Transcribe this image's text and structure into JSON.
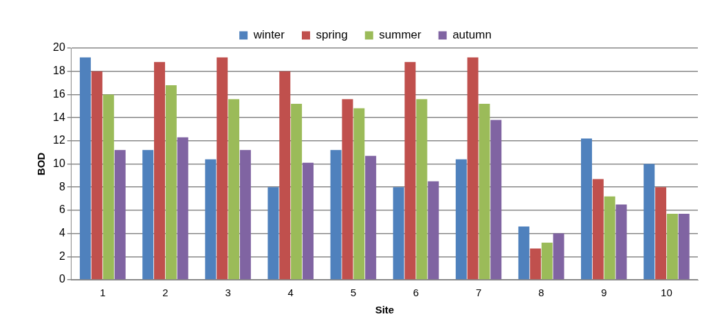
{
  "chart_data": {
    "type": "bar",
    "xlabel": "Site",
    "ylabel": "BOD",
    "categories": [
      "1",
      "2",
      "3",
      "4",
      "5",
      "6",
      "7",
      "8",
      "9",
      "10"
    ],
    "series": [
      {
        "name": "winter",
        "color": "#4f81bd",
        "values": [
          19.2,
          11.2,
          10.4,
          8.0,
          11.2,
          8.0,
          10.4,
          4.6,
          12.2,
          10.0
        ]
      },
      {
        "name": "spring",
        "color": "#c0504d",
        "values": [
          18.0,
          18.8,
          19.2,
          18.0,
          15.6,
          18.8,
          19.2,
          2.7,
          8.7,
          8.0
        ]
      },
      {
        "name": "summer",
        "color": "#9bbb59",
        "values": [
          16.0,
          16.8,
          15.6,
          15.2,
          14.8,
          15.6,
          15.2,
          3.2,
          7.2,
          5.7
        ]
      },
      {
        "name": "autumn",
        "color": "#8064a2",
        "values": [
          11.2,
          12.3,
          11.2,
          10.1,
          10.7,
          8.5,
          13.8,
          4.0,
          6.5,
          5.7
        ]
      }
    ],
    "ylim": [
      0,
      20
    ],
    "yticks": [
      0,
      2,
      4,
      6,
      8,
      10,
      12,
      14,
      16,
      18,
      20
    ],
    "grid": "y",
    "legend": "top"
  }
}
